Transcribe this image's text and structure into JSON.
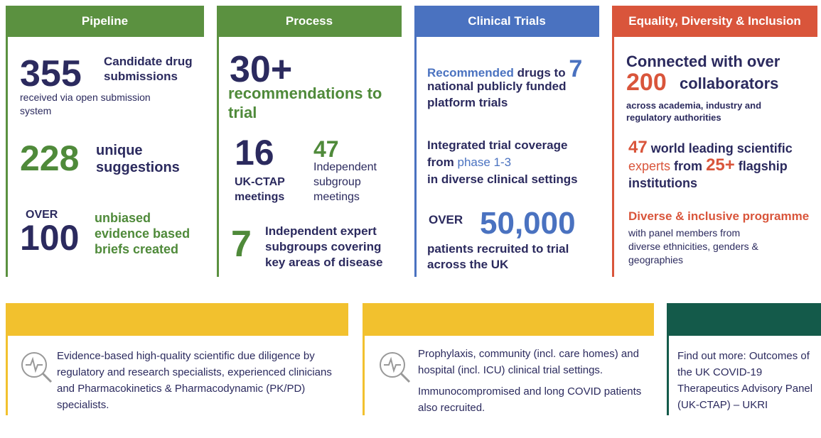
{
  "pipeline": {
    "title": "Pipeline",
    "s1_number": "355",
    "s1_label": "Candidate drug submissions",
    "s1_note": "received via open submission system",
    "s2_number": "228",
    "s2_label": "unique suggestions",
    "s3_prefix": "OVER",
    "s3_number": "100",
    "s3_label": "unbiased evidence based briefs created"
  },
  "process": {
    "title": "Process",
    "s1_number": "30+",
    "s1_label": "recommendations to trial",
    "s2_number": "16",
    "s2_label": "UK-CTAP meetings",
    "s3_number": "47",
    "s3_label": "Independent subgroup meetings",
    "s4_number": "7",
    "s4_label": "Independent expert subgroups covering key areas of disease"
  },
  "clinical_trials": {
    "title": "Clinical Trials",
    "i1_highlight": "Recommended",
    "i1_text": "drugs to",
    "i1_number": "7",
    "i1_rest": "national publicly funded platform trials",
    "i2_text": "Integrated trial coverage from",
    "i2_highlight": "phase 1-3",
    "i2_rest": "in diverse clinical settings",
    "i3_prefix": "OVER",
    "i3_number": "50,000",
    "i3_rest": "patients recruited to trial across the UK"
  },
  "edi": {
    "title": "Equality, Diversity & Inclusion",
    "i1_text": "Connected with over",
    "i1_number": "200",
    "i1_label": "collaborators",
    "i1_note": "across academia, industry and regulatory authorities",
    "i2_number": "47",
    "i2_text": "world leading scientific",
    "i2_highlight": "experts",
    "i2_from": "from",
    "i2_number2": "25+",
    "i2_rest": "flagship institutions",
    "i3_title": "Diverse & inclusive programme",
    "i3_text": "with panel members from diverse ethnicities, genders & geographies"
  },
  "bottom": {
    "left": "Evidence-based high-quality scientific due diligence by regulatory and research specialists, experienced clinicians and Pharmacokinetics & Pharmacodynamic (PK/PD) specialists.",
    "middle_1": "Prophylaxis, community (incl. care homes) and hospital (incl. ICU) clinical trial settings.",
    "middle_2": "Immunocompromised and long COVID patients also recruited.",
    "right": "Find out more: Outcomes of the UK COVID-19 Therapeutics Advisory Panel (UK-CTAP) – UKRI"
  }
}
